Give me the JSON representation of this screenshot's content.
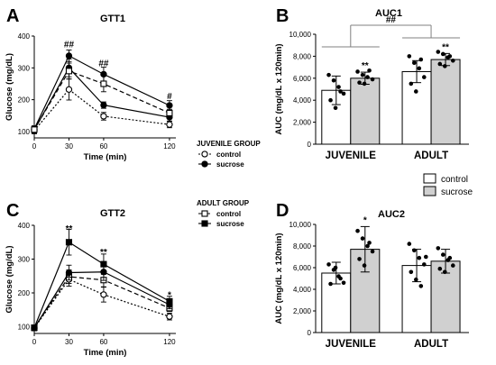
{
  "chart_data": [
    {
      "id": "A",
      "panel_letter": "A",
      "type": "line",
      "title": "GTT1",
      "xlabel": "Time (min)",
      "ylabel": "Glucose (mg/dL)",
      "x": [
        0,
        30,
        60,
        120
      ],
      "xticks": [
        "0",
        "30",
        "60",
        "120"
      ],
      "yticks": [
        "100",
        "200",
        "300",
        "400"
      ],
      "ylim": [
        80,
        400
      ],
      "legend_title": "JUVENILE GROUP",
      "series": [
        {
          "name": "control",
          "values": [
            103,
            232,
            148,
            122
          ],
          "err": [
            10,
            33,
            12,
            10
          ],
          "marker": "circle-open",
          "dash": "2,2"
        },
        {
          "name": "sucrose",
          "values": [
            108,
            338,
            280,
            182
          ],
          "err": [
            10,
            18,
            22,
            15
          ],
          "marker": "circle-filled",
          "dash": "none"
        },
        {
          "name": "",
          "values": [
            105,
            300,
            183,
            145
          ],
          "err": [
            10,
            28,
            10,
            12
          ],
          "marker": "circle-filled",
          "dash": "none"
        },
        {
          "name": "",
          "values": [
            106,
            290,
            250,
            158
          ],
          "err": [
            10,
            25,
            25,
            12
          ],
          "marker": "square-open",
          "dash": "5,3"
        }
      ],
      "annotations": [
        {
          "x": 30,
          "y": 365,
          "text": "##"
        },
        {
          "x": 60,
          "y": 305,
          "text": "##"
        },
        {
          "x": 120,
          "y": 202,
          "text": "#"
        }
      ]
    },
    {
      "id": "B",
      "panel_letter": "B",
      "type": "bar",
      "title": "AUC1",
      "ylabel": "AUC (mg/dL x 120min)",
      "yticks": [
        "0",
        "2,000",
        "4,000",
        "6,000",
        "8,000",
        "10,000"
      ],
      "ylim": [
        0,
        10000
      ],
      "categories": [
        "JUVENILE",
        "ADULT"
      ],
      "series": [
        {
          "name": "control",
          "values": [
            4900,
            6600
          ],
          "err": [
            1300,
            1000
          ]
        },
        {
          "name": "sucrose",
          "values": [
            6000,
            7700
          ],
          "err": [
            550,
            550
          ]
        }
      ],
      "points": {
        "JUVENILE": {
          "control": [
            6300,
            5800,
            5200,
            4600,
            4000,
            3300,
            4800
          ],
          "sucrose": [
            6600,
            6300,
            6100,
            5900,
            5600,
            5500,
            6700
          ]
        },
        "ADULT": {
          "control": [
            8000,
            7400,
            6900,
            6100,
            5500,
            4800,
            7700
          ],
          "sucrose": [
            8400,
            8200,
            7900,
            7600,
            7300,
            7100,
            8000
          ]
        }
      },
      "annotations": [
        {
          "category": "JUVENILE",
          "text": "**"
        },
        {
          "category": "ADULT",
          "text": "**"
        },
        {
          "category": "overall",
          "text": "##"
        }
      ]
    },
    {
      "id": "C",
      "panel_letter": "C",
      "type": "line",
      "title": "GTT2",
      "xlabel": "Time (min)",
      "ylabel": "Glucose (mg/dL)",
      "x": [
        0,
        30,
        60,
        120
      ],
      "xticks": [
        "0",
        "30",
        "60",
        "120"
      ],
      "yticks": [
        "100",
        "200",
        "300",
        "400"
      ],
      "ylim": [
        80,
        400
      ],
      "legend_title": "ADULT GROUP",
      "series": [
        {
          "name": "control",
          "values": [
            97,
            248,
            238,
            155
          ],
          "err": [
            8,
            20,
            20,
            10
          ],
          "marker": "square-open",
          "dash": "5,3"
        },
        {
          "name": "sucrose",
          "values": [
            97,
            350,
            285,
            175
          ],
          "err": [
            8,
            38,
            30,
            15
          ],
          "marker": "square-filled",
          "dash": "none"
        },
        {
          "name": "",
          "values": [
            96,
            240,
            195,
            130
          ],
          "err": [
            8,
            20,
            22,
            10
          ],
          "marker": "circle-open",
          "dash": "2,2"
        },
        {
          "name": "",
          "values": [
            96,
            260,
            262,
            165
          ],
          "err": [
            8,
            22,
            25,
            12
          ],
          "marker": "circle-filled",
          "dash": "none"
        }
      ],
      "annotations": [
        {
          "x": 30,
          "y": 382,
          "text": "**"
        },
        {
          "x": 60,
          "y": 312,
          "text": "**"
        },
        {
          "x": 120,
          "y": 185,
          "text": "*"
        }
      ]
    },
    {
      "id": "D",
      "panel_letter": "D",
      "type": "bar",
      "title": "AUC2",
      "ylabel": "AUC (mg/dL x 120min)",
      "yticks": [
        "0",
        "2,000",
        "4,000",
        "6,000",
        "8,000",
        "10,000"
      ],
      "ylim": [
        0,
        10000
      ],
      "categories": [
        "JUVENILE",
        "ADULT"
      ],
      "series": [
        {
          "name": "control",
          "values": [
            5500,
            6200
          ],
          "err": [
            1000,
            1500
          ]
        },
        {
          "name": "sucrose",
          "values": [
            7700,
            6600
          ],
          "err": [
            2100,
            1100
          ]
        }
      ],
      "points": {
        "JUVENILE": {
          "control": [
            6300,
            5800,
            5200,
            4600,
            4500,
            6000,
            5000
          ],
          "sucrose": [
            9400,
            8700,
            8000,
            7500,
            6800,
            6200,
            8300
          ]
        },
        "ADULT": {
          "control": [
            8200,
            7600,
            6900,
            6300,
            5600,
            4900,
            4300,
            7000
          ],
          "sucrose": [
            7800,
            7200,
            6700,
            6200,
            5900,
            5600,
            6900
          ]
        }
      },
      "annotations": [
        {
          "category": "JUVENILE",
          "text": "*"
        }
      ]
    }
  ],
  "bar_legend": {
    "items": [
      {
        "label": "control",
        "color": "#ffffff"
      },
      {
        "label": "sucrose",
        "color": "#d0d0d0"
      }
    ]
  },
  "colors": {
    "line": "#000000",
    "bar_control": "#ffffff",
    "bar_sucrose": "#d0d0d0",
    "bracket": "#808080"
  }
}
